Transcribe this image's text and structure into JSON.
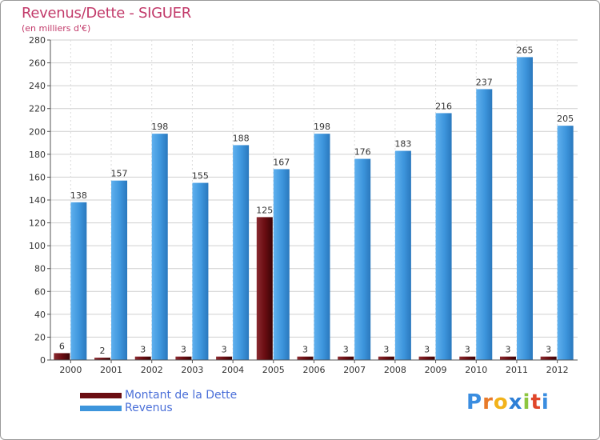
{
  "chart_data": {
    "type": "bar",
    "title": "Revenus/Dette - SIGUER",
    "subtitle": "(en milliers d'€)",
    "categories": [
      "2000",
      "2001",
      "2002",
      "2003",
      "2004",
      "2005",
      "2006",
      "2007",
      "2008",
      "2009",
      "2010",
      "2011",
      "2012"
    ],
    "series": [
      {
        "name": "Montant de la Dette",
        "color": "#6b0d12",
        "values": [
          6,
          2,
          3,
          3,
          3,
          125,
          3,
          3,
          3,
          3,
          3,
          3,
          3
        ]
      },
      {
        "name": "Revenus",
        "color": "#3d95dc",
        "values": [
          138,
          157,
          198,
          155,
          188,
          167,
          198,
          176,
          183,
          216,
          237,
          265,
          205
        ]
      }
    ],
    "ylim": [
      0,
      280
    ],
    "yticks": [
      0,
      20,
      40,
      60,
      80,
      100,
      120,
      140,
      160,
      180,
      200,
      220,
      240,
      260,
      280
    ],
    "grid": true,
    "legend_position": "bottom-left"
  },
  "logo": {
    "letters": [
      "P",
      "r",
      "o",
      "x",
      "i",
      "t",
      "i"
    ],
    "colors": [
      "#3a8de0",
      "#e87a2a",
      "#f2b21a",
      "#2e7fd6",
      "#8dc63f",
      "#e0462a",
      "#3a8de0"
    ]
  }
}
